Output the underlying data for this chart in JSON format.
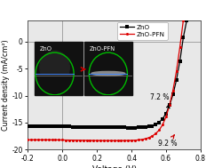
{
  "xlabel": "Voltage (V)",
  "ylabel": "Current density (mA/cm²)",
  "xlim": [
    -0.2,
    0.8
  ],
  "ylim": [
    -20,
    4
  ],
  "yticks": [
    -20,
    -15,
    -10,
    -5,
    0
  ],
  "ytick_labels": [
    "-20",
    "-15",
    "-10",
    "-5",
    "0"
  ],
  "xticks": [
    -0.2,
    0.0,
    0.2,
    0.4,
    0.6,
    0.8
  ],
  "legend_labels": [
    "ZnO",
    "ZnO-PFN"
  ],
  "zno_color": "#000000",
  "pfn_color": "#dd0000",
  "annotation_zno": "7.2 %",
  "annotation_pfn": "9.2 %",
  "background_color": "#e8e8e8",
  "grid_color": "#bbbbbb",
  "zno_data": [
    [
      -0.2,
      -15.7
    ],
    [
      -0.18,
      -15.7
    ],
    [
      -0.16,
      -15.7
    ],
    [
      -0.14,
      -15.7
    ],
    [
      -0.12,
      -15.7
    ],
    [
      -0.1,
      -15.7
    ],
    [
      -0.08,
      -15.7
    ],
    [
      -0.06,
      -15.71
    ],
    [
      -0.04,
      -15.72
    ],
    [
      -0.02,
      -15.73
    ],
    [
      0.0,
      -15.74
    ],
    [
      0.02,
      -15.75
    ],
    [
      0.04,
      -15.76
    ],
    [
      0.06,
      -15.77
    ],
    [
      0.08,
      -15.78
    ],
    [
      0.1,
      -15.79
    ],
    [
      0.12,
      -15.8
    ],
    [
      0.14,
      -15.81
    ],
    [
      0.16,
      -15.82
    ],
    [
      0.18,
      -15.83
    ],
    [
      0.2,
      -15.84
    ],
    [
      0.22,
      -15.85
    ],
    [
      0.24,
      -15.86
    ],
    [
      0.26,
      -15.87
    ],
    [
      0.28,
      -15.88
    ],
    [
      0.3,
      -15.89
    ],
    [
      0.32,
      -15.9
    ],
    [
      0.34,
      -15.91
    ],
    [
      0.36,
      -15.92
    ],
    [
      0.38,
      -15.93
    ],
    [
      0.4,
      -15.93
    ],
    [
      0.42,
      -15.93
    ],
    [
      0.44,
      -15.92
    ],
    [
      0.46,
      -15.9
    ],
    [
      0.48,
      -15.85
    ],
    [
      0.5,
      -15.75
    ],
    [
      0.52,
      -15.6
    ],
    [
      0.54,
      -15.35
    ],
    [
      0.56,
      -14.95
    ],
    [
      0.58,
      -14.3
    ],
    [
      0.6,
      -13.3
    ],
    [
      0.62,
      -11.8
    ],
    [
      0.64,
      -9.8
    ],
    [
      0.66,
      -7.1
    ],
    [
      0.68,
      -3.6
    ],
    [
      0.7,
      0.8
    ],
    [
      0.72,
      4.0
    ]
  ],
  "pfn_data": [
    [
      -0.2,
      -18.2
    ],
    [
      -0.18,
      -18.2
    ],
    [
      -0.16,
      -18.2
    ],
    [
      -0.14,
      -18.2
    ],
    [
      -0.12,
      -18.2
    ],
    [
      -0.1,
      -18.2
    ],
    [
      -0.08,
      -18.2
    ],
    [
      -0.06,
      -18.21
    ],
    [
      -0.04,
      -18.21
    ],
    [
      -0.02,
      -18.22
    ],
    [
      0.0,
      -18.23
    ],
    [
      0.02,
      -18.24
    ],
    [
      0.04,
      -18.25
    ],
    [
      0.06,
      -18.26
    ],
    [
      0.08,
      -18.27
    ],
    [
      0.1,
      -18.28
    ],
    [
      0.12,
      -18.29
    ],
    [
      0.14,
      -18.3
    ],
    [
      0.16,
      -18.31
    ],
    [
      0.18,
      -18.32
    ],
    [
      0.2,
      -18.33
    ],
    [
      0.22,
      -18.33
    ],
    [
      0.24,
      -18.34
    ],
    [
      0.26,
      -18.34
    ],
    [
      0.28,
      -18.34
    ],
    [
      0.3,
      -18.34
    ],
    [
      0.32,
      -18.34
    ],
    [
      0.34,
      -18.34
    ],
    [
      0.36,
      -18.33
    ],
    [
      0.38,
      -18.32
    ],
    [
      0.4,
      -18.3
    ],
    [
      0.42,
      -18.27
    ],
    [
      0.44,
      -18.22
    ],
    [
      0.46,
      -18.14
    ],
    [
      0.48,
      -18.0
    ],
    [
      0.5,
      -17.8
    ],
    [
      0.52,
      -17.5
    ],
    [
      0.54,
      -17.05
    ],
    [
      0.56,
      -16.4
    ],
    [
      0.58,
      -15.4
    ],
    [
      0.6,
      -13.9
    ],
    [
      0.62,
      -11.8
    ],
    [
      0.64,
      -9.0
    ],
    [
      0.66,
      -5.5
    ],
    [
      0.68,
      -1.0
    ],
    [
      0.7,
      4.0
    ]
  ],
  "inset1_label": "ZnO",
  "inset2_label": "ZnO-PFN",
  "inset_bg": "#111111",
  "droplet_color": "#333333",
  "circle_color": "#00bb00",
  "blue_line_color": "#4488ff",
  "arrow_color": "#cc0000"
}
